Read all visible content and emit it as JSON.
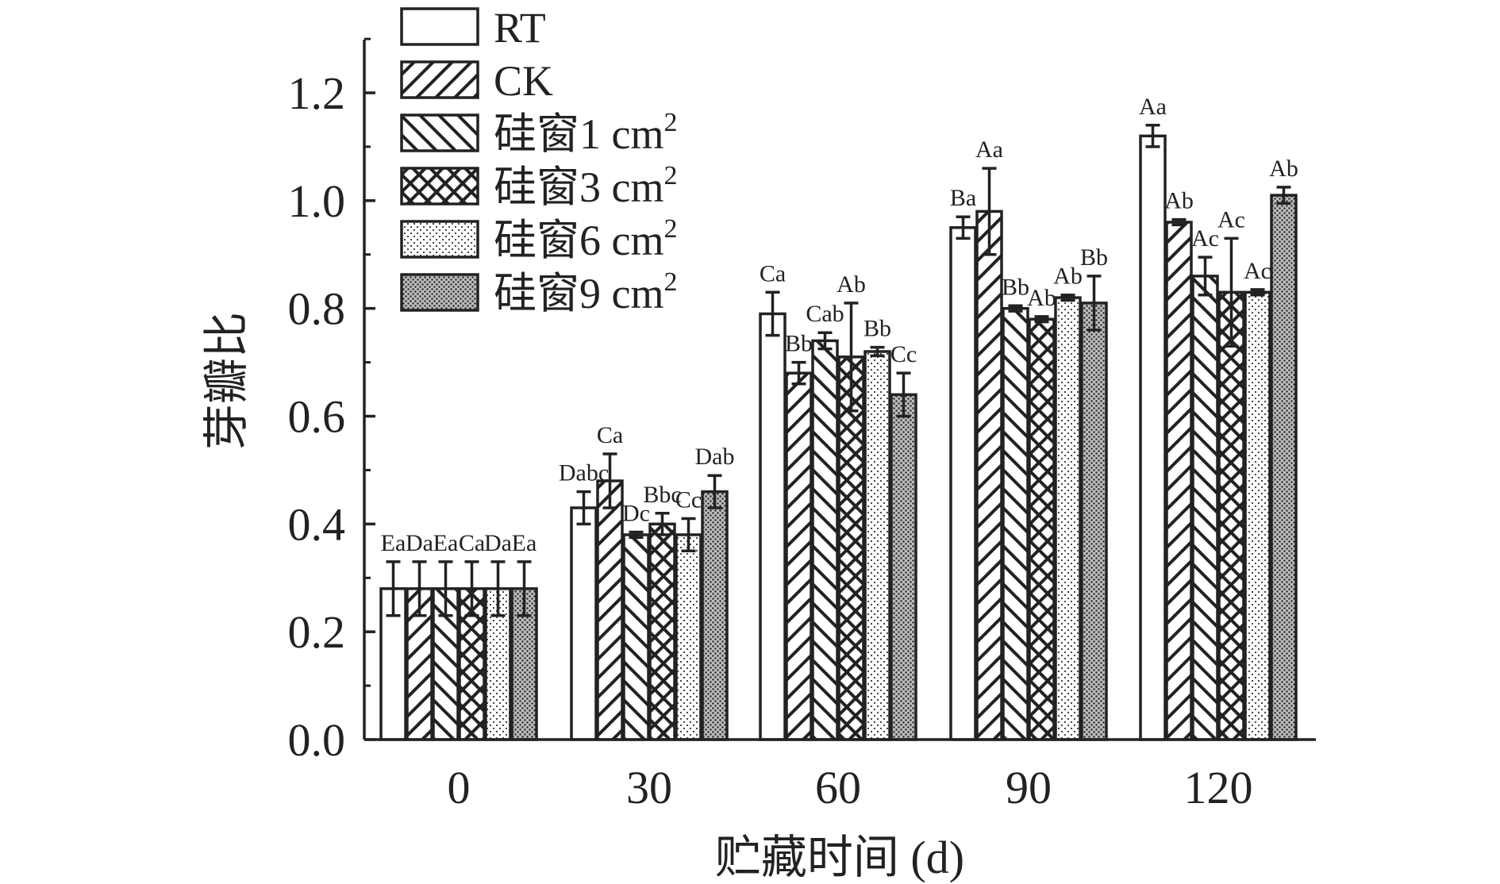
{
  "chart_data": {
    "type": "bar",
    "xlabel": "贮藏时间 (d)",
    "ylabel": "芽瓣比",
    "ylim": [
      0.0,
      1.3
    ],
    "yticks": [
      "0.0",
      "0.2",
      "0.4",
      "0.6",
      "0.8",
      "1.0",
      "1.2"
    ],
    "categories": [
      "0",
      "30",
      "60",
      "90",
      "120"
    ],
    "grid": false,
    "legend_position": "top-left",
    "series": [
      {
        "name": "RT",
        "superscript": "",
        "pattern": "empty",
        "values": [
          0.28,
          0.43,
          0.79,
          0.95,
          1.12
        ],
        "errors": [
          0.05,
          0.03,
          0.04,
          0.02,
          0.02
        ],
        "labels": [
          "Ea",
          "Dabc",
          "Ca",
          "Ba",
          "Aa"
        ]
      },
      {
        "name": "CK",
        "superscript": "",
        "pattern": "diag-up",
        "values": [
          0.28,
          0.48,
          0.68,
          0.98,
          0.96
        ],
        "errors": [
          0.05,
          0.05,
          0.02,
          0.08,
          0.005
        ],
        "labels": [
          "Da",
          "Ca",
          "Bb",
          "Aa",
          "Ab"
        ]
      },
      {
        "name": "硅窗1 cm",
        "superscript": "2",
        "pattern": "diag-down",
        "values": [
          0.28,
          0.38,
          0.74,
          0.8,
          0.86
        ],
        "errors": [
          0.05,
          0.005,
          0.015,
          0.005,
          0.035
        ],
        "labels": [
          "Ea",
          "Dc",
          "Cab",
          "Bb",
          "Ac"
        ]
      },
      {
        "name": "硅窗3 cm",
        "superscript": "2",
        "pattern": "crosshatch",
        "values": [
          0.28,
          0.4,
          0.71,
          0.78,
          0.83
        ],
        "errors": [
          0.05,
          0.02,
          0.1,
          0.005,
          0.1
        ],
        "labels": [
          "Ca",
          "Bbc",
          "Ab",
          "Ab",
          "Ac"
        ]
      },
      {
        "name": "硅窗6 cm",
        "superscript": "2",
        "pattern": "dots",
        "values": [
          0.28,
          0.38,
          0.72,
          0.82,
          0.83
        ],
        "errors": [
          0.05,
          0.03,
          0.008,
          0.005,
          0.005
        ],
        "labels": [
          "Da",
          "Cc",
          "Bb",
          "Ab",
          "Ac"
        ]
      },
      {
        "name": "硅窗9 cm",
        "superscript": "2",
        "pattern": "dense-dots",
        "values": [
          0.28,
          0.46,
          0.64,
          0.81,
          1.01
        ],
        "errors": [
          0.05,
          0.03,
          0.04,
          0.05,
          0.015
        ],
        "labels": [
          "Ea",
          "Dab",
          "Cc",
          "Bb",
          "Ab"
        ]
      }
    ]
  }
}
